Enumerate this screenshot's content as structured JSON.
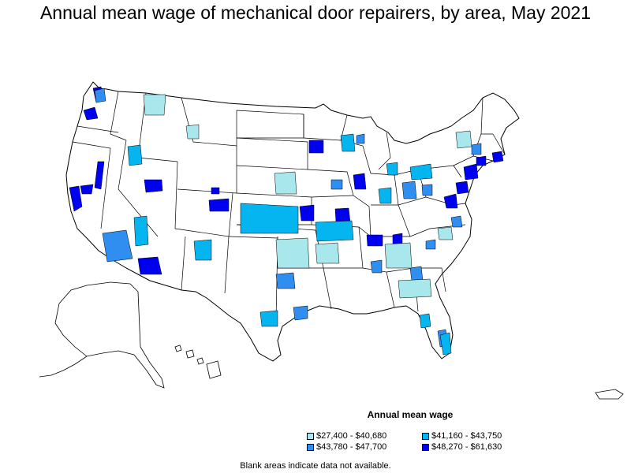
{
  "title": "Annual mean wage of mechanical door repairers, by area, May 2021",
  "legend": {
    "title": "Annual mean wage",
    "items": [
      {
        "label": "$27,400 - $40,680",
        "color": "#a8e8ec"
      },
      {
        "label": "$41,160 - $43,750",
        "color": "#05b5f0"
      },
      {
        "label": "$43,780 - $47,700",
        "color": "#2f8ef0"
      },
      {
        "label": "$48,270 - $61,630",
        "color": "#0000f0"
      }
    ]
  },
  "note": "Blank areas indicate data not available.",
  "colors": {
    "no_data": "#ffffff",
    "border": "#000000"
  }
}
